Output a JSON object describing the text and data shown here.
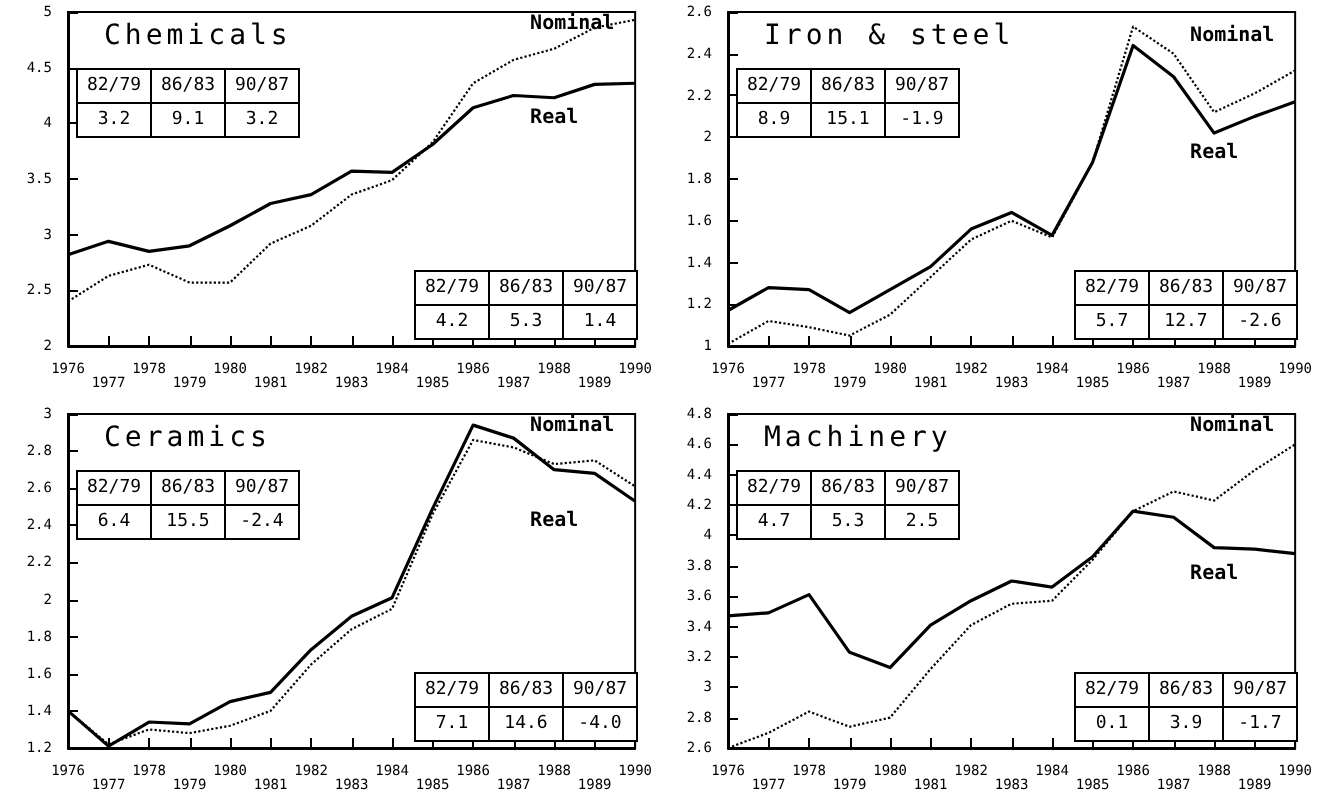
{
  "chart_data": [
    {
      "type": "line",
      "title": "Chemicals",
      "categories": [
        "1976",
        "1977",
        "1978",
        "1979",
        "1980",
        "1981",
        "1982",
        "1983",
        "1984",
        "1985",
        "1986",
        "1987",
        "1988",
        "1989",
        "1990"
      ],
      "series": [
        {
          "name": "Nominal",
          "color": "#000000",
          "line_style": "dotted",
          "values": [
            2.4,
            2.63,
            2.73,
            2.57,
            2.57,
            2.92,
            3.08,
            3.36,
            3.49,
            3.83,
            4.36,
            4.57,
            4.67,
            4.86,
            4.93
          ]
        },
        {
          "name": "Real",
          "color": "#000000",
          "line_style": "solid",
          "values": [
            2.82,
            2.94,
            2.85,
            2.9,
            3.08,
            3.28,
            3.36,
            3.57,
            3.56,
            3.81,
            4.14,
            4.25,
            4.23,
            4.35,
            4.36
          ]
        }
      ],
      "ylim": [
        2,
        5
      ],
      "yticks": [
        2,
        2.5,
        3,
        3.5,
        4,
        4.5,
        5
      ],
      "grid": false,
      "legend": false,
      "marker": "none",
      "annotations": [
        "82/79",
        "86/83",
        "90/87",
        "3.2",
        "9.1",
        "3.2",
        "82/79",
        "86/83",
        "90/87",
        "4.2",
        "5.3",
        "1.4"
      ]
    },
    {
      "type": "line",
      "title": "Iron & steel",
      "categories": [
        "1976",
        "1977",
        "1978",
        "1979",
        "1980",
        "1981",
        "1982",
        "1983",
        "1984",
        "1985",
        "1986",
        "1987",
        "1988",
        "1989",
        "1990"
      ],
      "series": [
        {
          "name": "Nominal",
          "color": "#000000",
          "line_style": "dotted",
          "values": [
            1.01,
            1.12,
            1.09,
            1.05,
            1.15,
            1.33,
            1.51,
            1.6,
            1.52,
            1.88,
            2.53,
            2.4,
            2.12,
            2.21,
            2.32
          ]
        },
        {
          "name": "Real",
          "color": "#000000",
          "line_style": "solid",
          "values": [
            1.17,
            1.28,
            1.27,
            1.16,
            1.27,
            1.38,
            1.56,
            1.64,
            1.53,
            1.88,
            2.44,
            2.29,
            2.02,
            2.1,
            2.17
          ]
        }
      ],
      "ylim": [
        1,
        2.6
      ],
      "yticks": [
        1,
        1.2,
        1.4,
        1.6,
        1.8,
        2,
        2.2,
        2.4,
        2.6
      ],
      "grid": false,
      "legend": false,
      "marker": "none",
      "annotations": [
        "82/79",
        "86/83",
        "90/87",
        "8.9",
        "15.1",
        "-1.9",
        "82/79",
        "86/83",
        "90/87",
        "5.7",
        "12.7",
        "-2.6"
      ]
    },
    {
      "type": "line",
      "title": "Ceramics",
      "categories": [
        "1976",
        "1977",
        "1978",
        "1979",
        "1980",
        "1981",
        "1982",
        "1983",
        "1984",
        "1985",
        "1986",
        "1987",
        "1988",
        "1989",
        "1990"
      ],
      "series": [
        {
          "name": "Nominal",
          "color": "#000000",
          "line_style": "dotted",
          "values": [
            1.4,
            1.22,
            1.3,
            1.28,
            1.32,
            1.4,
            1.65,
            1.84,
            1.95,
            2.46,
            2.86,
            2.82,
            2.73,
            2.75,
            2.61
          ]
        },
        {
          "name": "Real",
          "color": "#000000",
          "line_style": "solid",
          "values": [
            1.4,
            1.21,
            1.34,
            1.33,
            1.45,
            1.5,
            1.73,
            1.91,
            2.01,
            2.49,
            2.94,
            2.87,
            2.7,
            2.68,
            2.53
          ]
        }
      ],
      "ylim": [
        1.2,
        3
      ],
      "yticks": [
        1.2,
        1.4,
        1.6,
        1.8,
        2,
        2.2,
        2.4,
        2.6,
        2.8,
        3
      ],
      "grid": false,
      "legend": false,
      "marker": "none",
      "annotations": [
        "82/79",
        "86/83",
        "90/87",
        "6.4",
        "15.5",
        "-2.4",
        "82/79",
        "86/83",
        "90/87",
        "7.1",
        "14.6",
        "-4.0"
      ]
    },
    {
      "type": "line",
      "title": "Machinery",
      "categories": [
        "1976",
        "1977",
        "1978",
        "1979",
        "1980",
        "1981",
        "1982",
        "1983",
        "1984",
        "1985",
        "1986",
        "1987",
        "1988",
        "1989",
        "1990"
      ],
      "series": [
        {
          "name": "Nominal",
          "color": "#000000",
          "line_style": "dotted",
          "values": [
            2.6,
            2.7,
            2.84,
            2.74,
            2.8,
            3.12,
            3.41,
            3.55,
            3.57,
            3.84,
            4.16,
            4.29,
            4.23,
            4.43,
            4.6
          ]
        },
        {
          "name": "Real",
          "color": "#000000",
          "line_style": "solid",
          "values": [
            3.47,
            3.49,
            3.61,
            3.23,
            3.13,
            3.41,
            3.57,
            3.7,
            3.66,
            3.86,
            4.16,
            4.12,
            3.92,
            3.91,
            3.88
          ]
        }
      ],
      "ylim": [
        2.6,
        4.8
      ],
      "yticks": [
        2.6,
        2.8,
        3,
        3.2,
        3.4,
        3.6,
        3.8,
        4,
        4.2,
        4.4,
        4.6,
        4.8
      ],
      "grid": false,
      "legend": false,
      "marker": "none",
      "annotations": [
        "82/79",
        "86/83",
        "90/87",
        "4.7",
        "5.3",
        "2.5",
        "82/79",
        "86/83",
        "90/87",
        "0.1",
        "3.9",
        "-1.7"
      ]
    }
  ]
}
